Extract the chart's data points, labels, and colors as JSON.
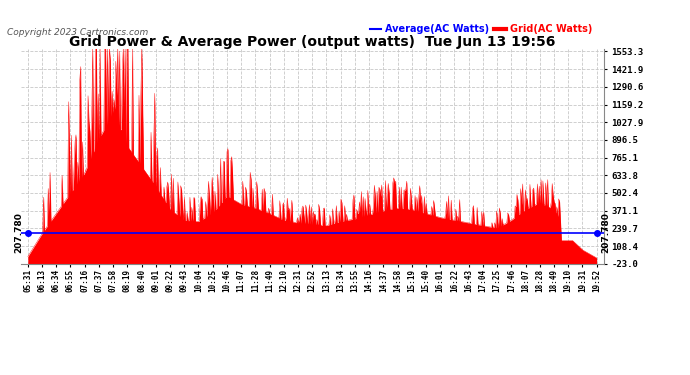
{
  "title": "Grid Power & Average Power (output watts)  Tue Jun 13 19:56",
  "copyright": "Copyright 2023 Cartronics.com",
  "legend_avg": "Average(AC Watts)",
  "legend_grid": "Grid(AC Watts)",
  "avg_value": 207.78,
  "avg_label": "207.780",
  "y_ticks": [
    1553.3,
    1421.9,
    1290.6,
    1159.2,
    1027.9,
    896.5,
    765.1,
    633.8,
    502.4,
    371.1,
    239.7,
    108.4,
    -23.0
  ],
  "y_min": -23.0,
  "y_max": 1553.3,
  "bg_color": "#ffffff",
  "grid_color": "#c8c8c8",
  "area_color": "#ff0000",
  "avg_line_color": "#0000ff",
  "title_color": "#000000",
  "copyright_color": "#555555",
  "legend_avg_color": "#0000ff",
  "legend_grid_color": "#ff0000",
  "x_tick_labels": [
    "05:31",
    "06:13",
    "06:34",
    "06:55",
    "07:16",
    "07:37",
    "07:58",
    "08:19",
    "08:40",
    "09:01",
    "09:22",
    "09:43",
    "10:04",
    "10:25",
    "10:46",
    "11:07",
    "11:28",
    "11:49",
    "12:10",
    "12:31",
    "12:52",
    "13:13",
    "13:34",
    "13:55",
    "14:16",
    "14:37",
    "14:58",
    "15:19",
    "15:40",
    "16:01",
    "16:22",
    "16:43",
    "17:04",
    "17:25",
    "17:46",
    "18:07",
    "18:28",
    "18:49",
    "19:10",
    "19:31",
    "19:52"
  ],
  "power_envelope": [
    30,
    200,
    350,
    500,
    650,
    900,
    1100,
    850,
    700,
    550,
    380,
    300,
    290,
    350,
    480,
    420,
    390,
    350,
    300,
    280,
    270,
    260,
    290,
    310,
    340,
    370,
    390,
    380,
    350,
    320,
    300,
    280,
    260,
    240,
    300,
    380,
    430,
    380,
    180,
    80,
    20
  ]
}
